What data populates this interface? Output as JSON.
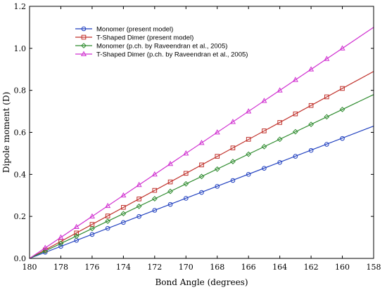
{
  "chart_data": {
    "type": "line",
    "xlabel": "Bond Angle (degrees)",
    "ylabel": "Dipole moment (D)",
    "xlim": [
      180,
      158
    ],
    "ylim": [
      0,
      1.2
    ],
    "x_ticks": [
      "180",
      "178",
      "176",
      "174",
      "172",
      "170",
      "168",
      "166",
      "164",
      "162",
      "160",
      "158"
    ],
    "y_ticks": [
      "0.0",
      "0.2",
      "0.4",
      "0.6",
      "0.8",
      "1.0",
      "1.2"
    ],
    "grid": false,
    "legend_position": "top-left",
    "x_markers": [
      179,
      178,
      177,
      176,
      175,
      174,
      173,
      172,
      171,
      170,
      169,
      168,
      167,
      166,
      165,
      164,
      163,
      162,
      161,
      160
    ],
    "series": [
      {
        "name": "Monomer (present model)",
        "color": "#1f3fbf",
        "marker": "circle",
        "line_end": 0.63,
        "values": [
          0.029,
          0.057,
          0.086,
          0.114,
          0.143,
          0.171,
          0.2,
          0.229,
          0.257,
          0.286,
          0.314,
          0.343,
          0.371,
          0.4,
          0.429,
          0.457,
          0.486,
          0.514,
          0.543,
          0.571
        ]
      },
      {
        "name": "T-Shaped Dimer (present model)",
        "color": "#c0302a",
        "marker": "square",
        "line_end": 0.89,
        "values": [
          0.04,
          0.081,
          0.121,
          0.162,
          0.202,
          0.243,
          0.283,
          0.324,
          0.364,
          0.405,
          0.445,
          0.486,
          0.526,
          0.567,
          0.607,
          0.647,
          0.688,
          0.728,
          0.769,
          0.809
        ]
      },
      {
        "name": "Monomer (p.ch. by Raveendran et al., 2005)",
        "color": "#2e8b2e",
        "marker": "diamond",
        "line_end": 0.78,
        "values": [
          0.035,
          0.071,
          0.106,
          0.142,
          0.177,
          0.213,
          0.248,
          0.284,
          0.319,
          0.355,
          0.39,
          0.425,
          0.461,
          0.496,
          0.532,
          0.567,
          0.603,
          0.638,
          0.674,
          0.709
        ]
      },
      {
        "name": "T-Shaped Dimer (p.ch. by Raveendran et al., 2005)",
        "color": "#d030d0",
        "marker": "triangle",
        "line_end": 1.1,
        "values": [
          0.05,
          0.1,
          0.15,
          0.2,
          0.25,
          0.3,
          0.35,
          0.4,
          0.45,
          0.5,
          0.55,
          0.6,
          0.65,
          0.7,
          0.75,
          0.8,
          0.85,
          0.9,
          0.95,
          1.0
        ]
      }
    ]
  }
}
